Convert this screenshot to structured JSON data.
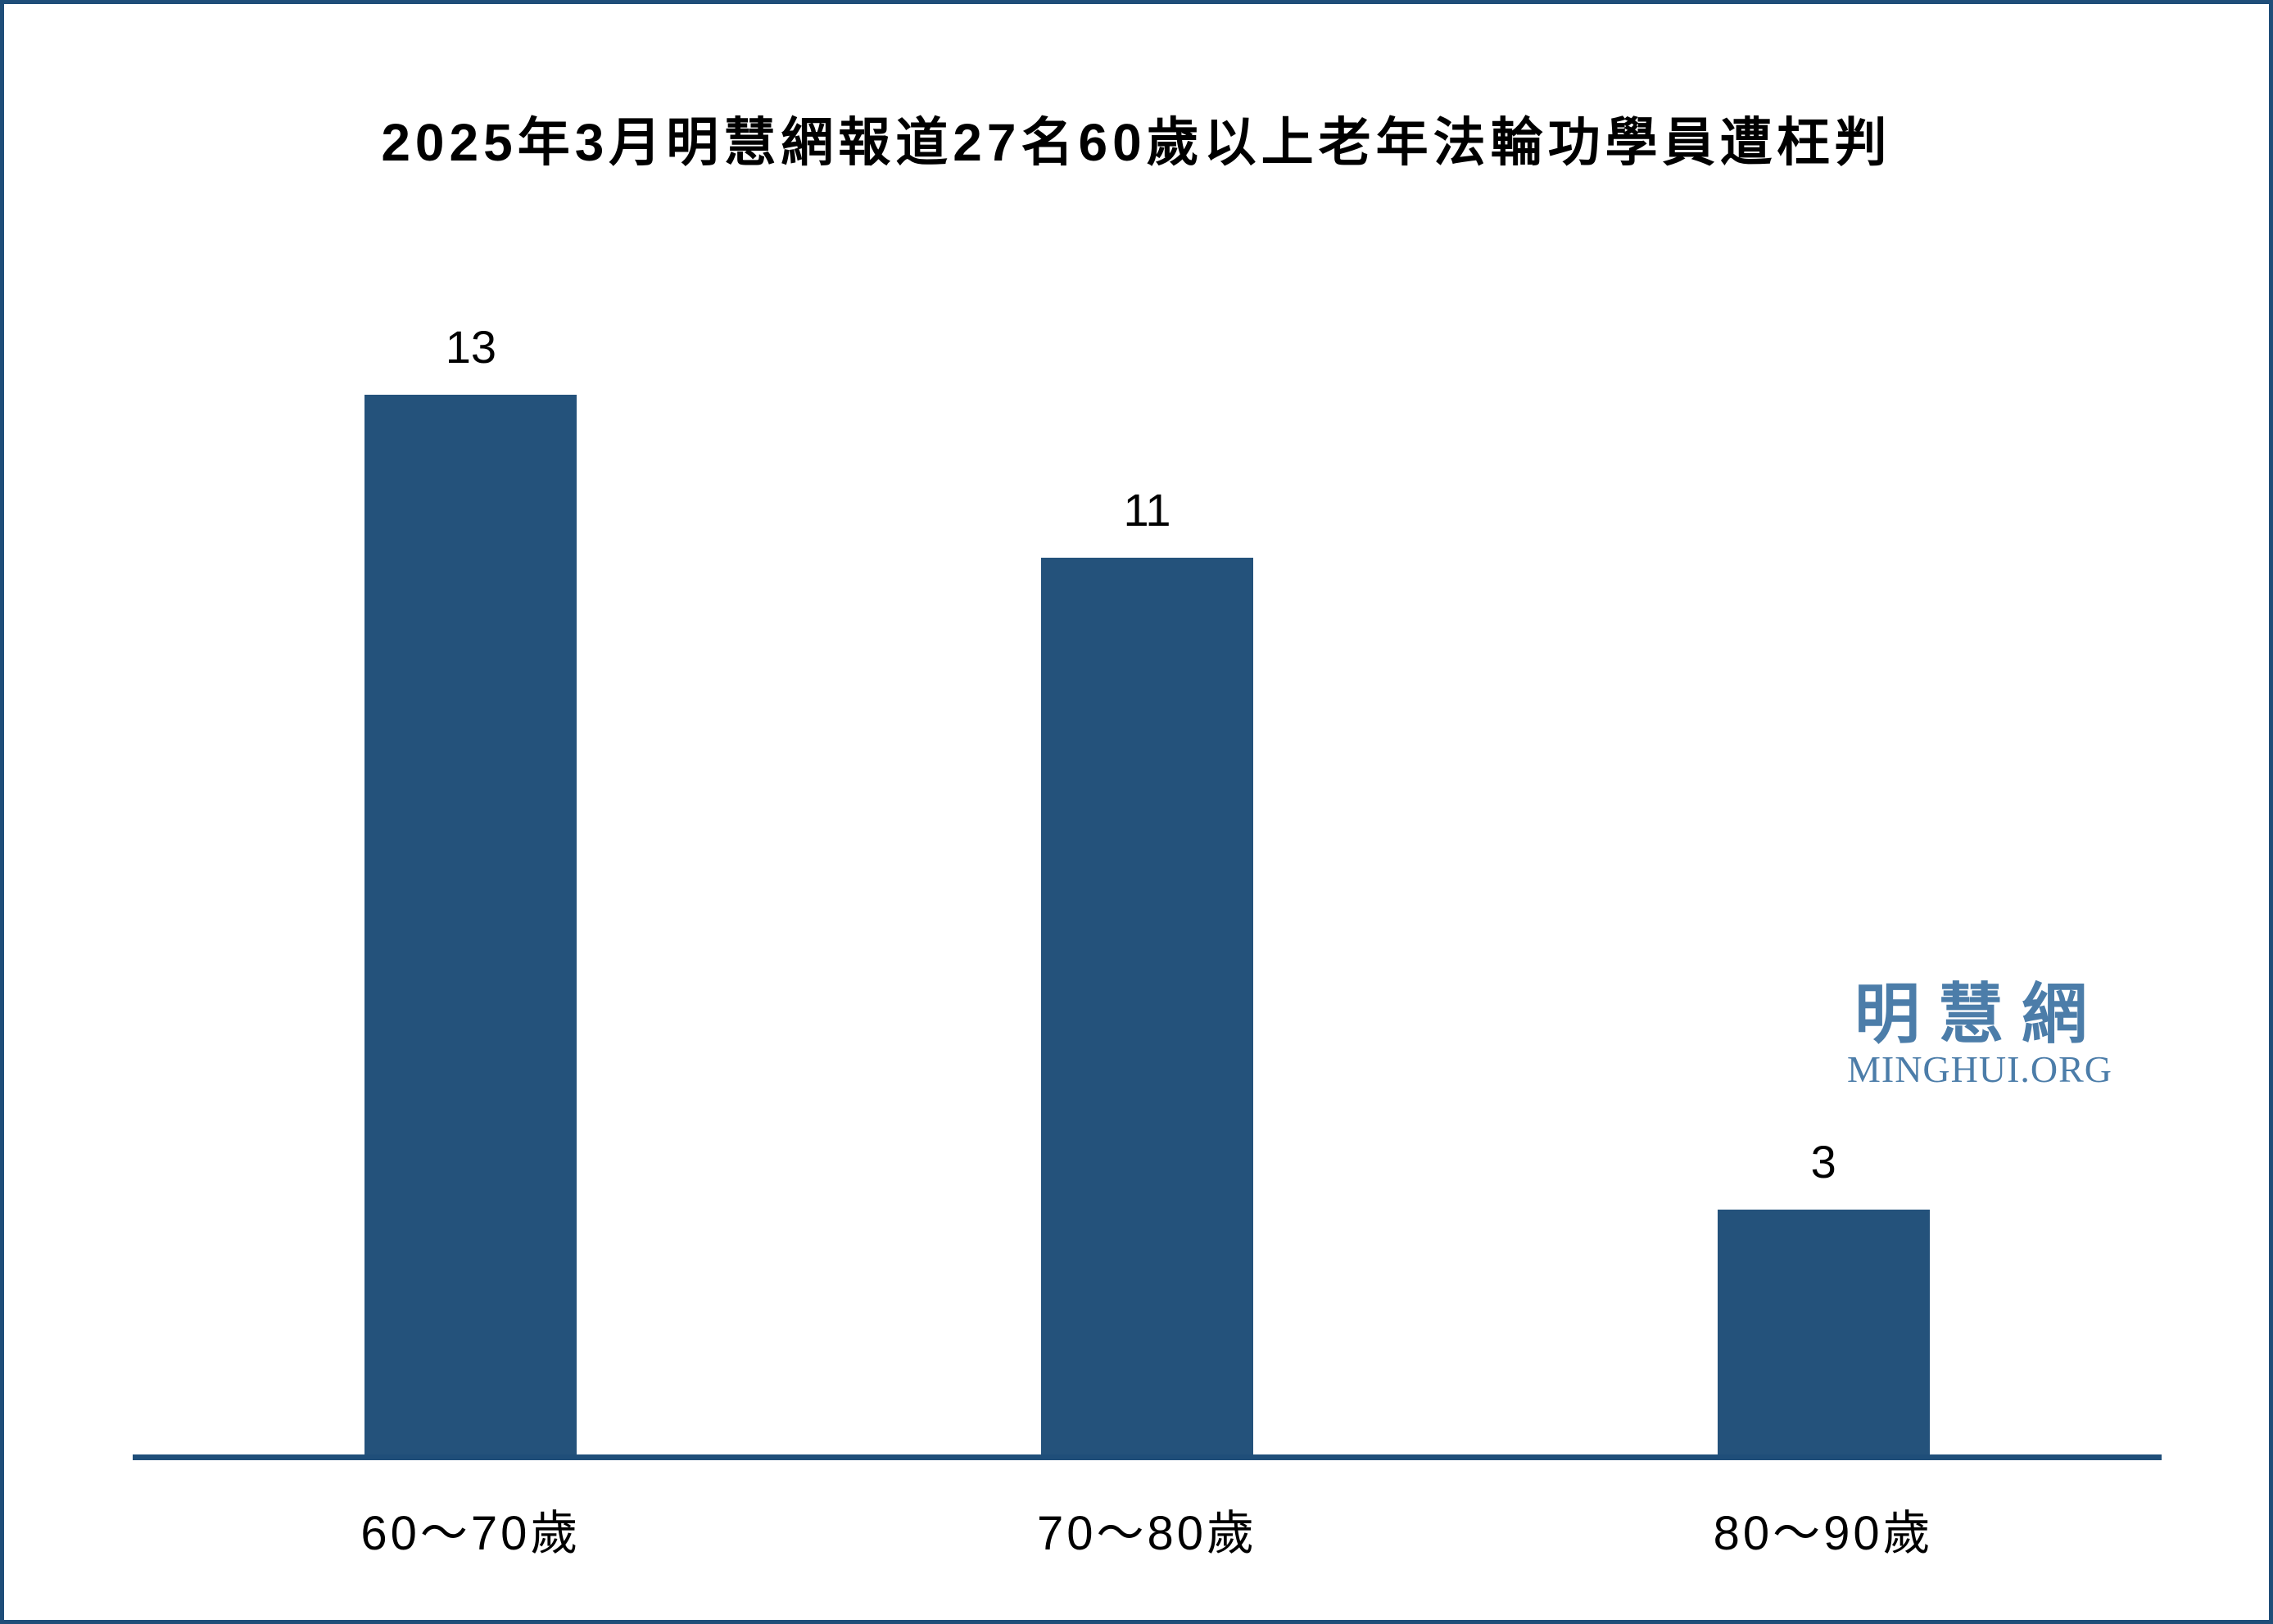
{
  "page": {
    "background": "#ffffff",
    "frame_border_color": "#1F4E79"
  },
  "watermark": {
    "cjk": "明慧網",
    "latin": "MINGHUI.ORG",
    "color": "#4C7DA9"
  },
  "chart_data": {
    "type": "bar",
    "title": "2025年3月明慧網報道27名60歲以上老年法輪功學員遭枉判",
    "categories": [
      "60～70歲",
      "70～80歲",
      "80～90歲"
    ],
    "values": [
      13,
      11,
      3
    ],
    "total_reported": 27,
    "bar_color": "#24527B",
    "axis_color": "#1F4E79",
    "value_label_color": "#000000",
    "xlabel": "",
    "ylabel": "",
    "ylim": [
      0,
      14.3
    ],
    "grid": false,
    "legend": "none",
    "value_labels_shown": true
  }
}
